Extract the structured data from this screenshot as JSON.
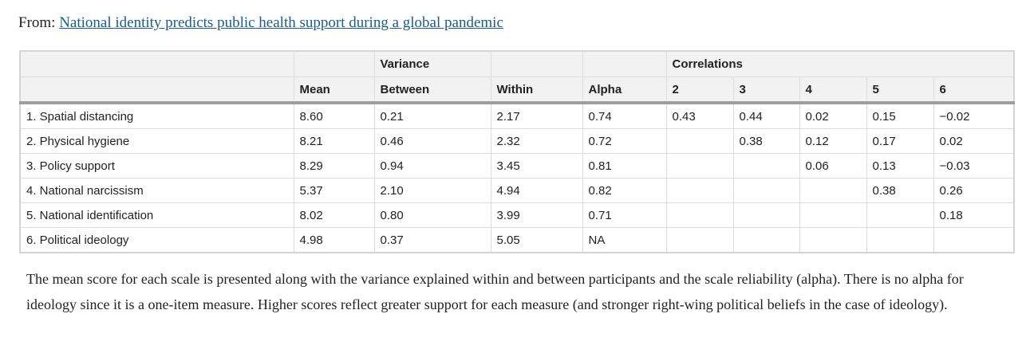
{
  "source": {
    "from_label": "From:",
    "article_title": "National identity predicts public health support during a global pandemic"
  },
  "table": {
    "header_row1": [
      "",
      "",
      "Variance",
      "",
      "",
      "Correlations",
      "",
      "",
      "",
      ""
    ],
    "header_row2": [
      "",
      "Mean",
      "Between",
      "Within",
      "Alpha",
      "2",
      "3",
      "4",
      "5",
      "6"
    ],
    "rows": [
      [
        "1. Spatial distancing",
        "8.60",
        "0.21",
        "2.17",
        "0.74",
        "0.43",
        "0.44",
        "0.02",
        "0.15",
        "−0.02"
      ],
      [
        "2. Physical hygiene",
        "8.21",
        "0.46",
        "2.32",
        "0.72",
        "",
        "0.38",
        "0.12",
        "0.17",
        "0.02"
      ],
      [
        "3. Policy support",
        "8.29",
        "0.94",
        "3.45",
        "0.81",
        "",
        "",
        "0.06",
        "0.13",
        "−0.03"
      ],
      [
        "4. National narcissism",
        "5.37",
        "2.10",
        "4.94",
        "0.82",
        "",
        "",
        "",
        "0.38",
        "0.26"
      ],
      [
        "5. National identification",
        "8.02",
        "0.80",
        "3.99",
        "0.71",
        "",
        "",
        "",
        "",
        "0.18"
      ],
      [
        "6. Political ideology",
        "4.98",
        "0.37",
        "5.05",
        "NA",
        "",
        "",
        "",
        "",
        ""
      ]
    ]
  },
  "caption": "The mean score for each scale is presented along with the variance explained within and between participants and the scale reliability (alpha). There is no alpha for ideology since it is a one-item measure. Higher scores reflect greater support for each measure (and stronger right-wing political beliefs in the case of ideology)."
}
